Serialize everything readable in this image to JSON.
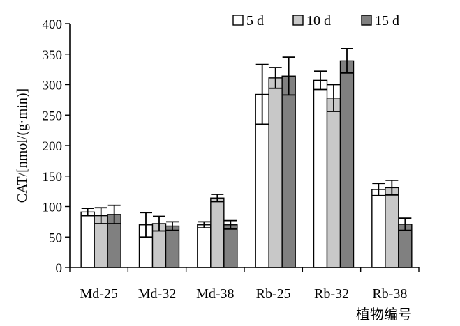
{
  "chart_data": {
    "type": "bar",
    "title": "",
    "xlabel": "植物编号",
    "ylabel": "CAT/[nmol/(g·min)]",
    "ylim": [
      0,
      400
    ],
    "yticks": [
      0,
      50,
      100,
      150,
      200,
      250,
      300,
      350,
      400
    ],
    "categories": [
      "Md-25",
      "Md-32",
      "Md-38",
      "Rb-25",
      "Rb-32",
      "Rb-38"
    ],
    "legend_position": "top-right",
    "grid": false,
    "series": [
      {
        "name": "5 d",
        "color": "#ffffff",
        "values": [
          91,
          70,
          70,
          284,
          307,
          128
        ],
        "errors": [
          6,
          20,
          5,
          49,
          15,
          10
        ]
      },
      {
        "name": "10 d",
        "color": "#c8c8c8",
        "values": [
          85,
          72,
          114,
          311,
          278,
          131
        ],
        "errors": [
          13,
          12,
          6,
          17,
          22,
          12
        ]
      },
      {
        "name": "15 d",
        "color": "#808080",
        "values": [
          87,
          68,
          70,
          314,
          339,
          71
        ],
        "errors": [
          15,
          7,
          7,
          31,
          20,
          10
        ]
      }
    ]
  }
}
